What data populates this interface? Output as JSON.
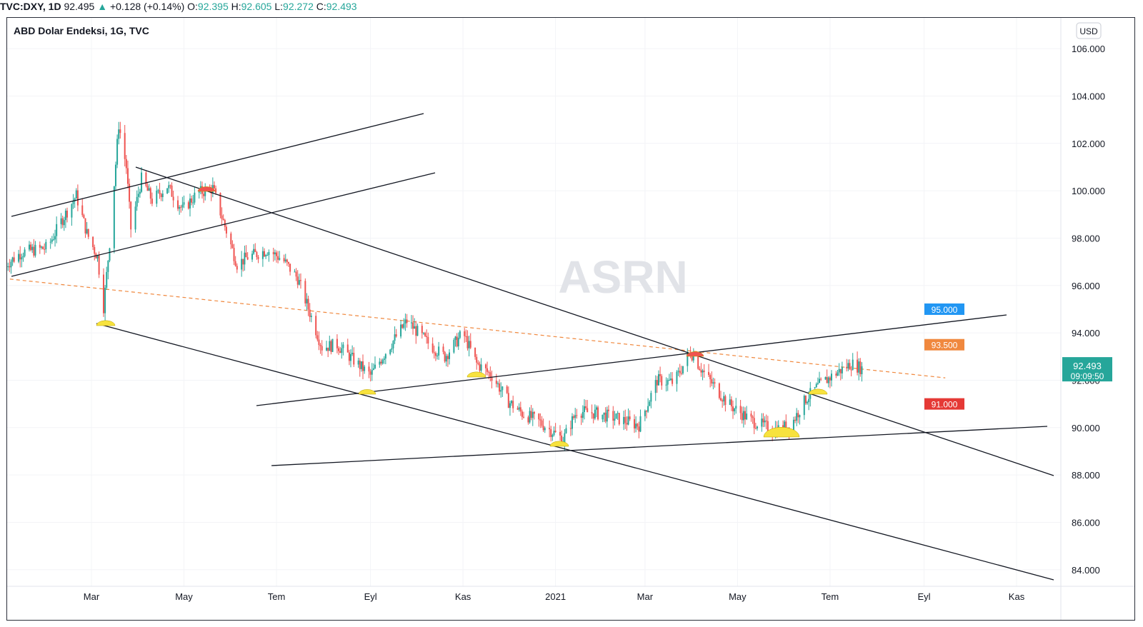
{
  "header": {
    "symbol": "TVC:DXY, 1D",
    "last": "92.495",
    "arrow": "▲",
    "change": "+0.128 (+0.14%)",
    "o_label": "O:",
    "o_value": "92.395",
    "h_label": "H:",
    "h_value": "92.605",
    "l_label": "L:",
    "l_value": "92.272",
    "c_label": "C:",
    "c_value": "92.493"
  },
  "chart_title": "ABD Dolar Endeksi, 1G, TVC",
  "currency_label": "USD",
  "watermark": "ASRN",
  "last_price_tag": {
    "price": "92.493",
    "countdown": "09:09:50",
    "color": "#26a69a"
  },
  "colors": {
    "up": "#26a69a",
    "down": "#ef5350",
    "trendline": "#131722",
    "dashed_line": "#f0883e",
    "marker": "#f7e23e",
    "marker_red": "#ef5350"
  },
  "chart_data": {
    "type": "candlestick",
    "title": "ABD Dolar Endeksi, 1G, TVC",
    "x_range": [
      "2020-01-03",
      "2021-10-29"
    ],
    "ylim": [
      83.3,
      107.3
    ],
    "y_ticks": [
      "106.000",
      "104.000",
      "102.000",
      "100.000",
      "98.000",
      "96.000",
      "94.000",
      "92.000",
      "90.000",
      "88.000",
      "86.000",
      "84.000"
    ],
    "x_ticks": [
      {
        "label": "Mar",
        "date": "2020-03-01"
      },
      {
        "label": "May",
        "date": "2020-05-01"
      },
      {
        "label": "Tem",
        "date": "2020-07-01"
      },
      {
        "label": "Eyl",
        "date": "2020-09-01"
      },
      {
        "label": "Kas",
        "date": "2020-11-01"
      },
      {
        "label": "2021",
        "date": "2021-01-01"
      },
      {
        "label": "Mar",
        "date": "2021-03-01"
      },
      {
        "label": "May",
        "date": "2021-05-01"
      },
      {
        "label": "Tem",
        "date": "2021-07-01"
      },
      {
        "label": "Eyl",
        "date": "2021-09-01"
      },
      {
        "label": "Kas",
        "date": "2021-11-01"
      }
    ],
    "price_path": [
      [
        "2020-01-03",
        96.8
      ],
      [
        "2020-01-15",
        97.4
      ],
      [
        "2020-02-01",
        97.6
      ],
      [
        "2020-02-10",
        98.7
      ],
      [
        "2020-02-20",
        99.8
      ],
      [
        "2020-02-27",
        98.2
      ],
      [
        "2020-03-05",
        97.2
      ],
      [
        "2020-03-09",
        95.1
      ],
      [
        "2020-03-13",
        97.8
      ],
      [
        "2020-03-19",
        102.8
      ],
      [
        "2020-03-24",
        101.0
      ],
      [
        "2020-03-27",
        98.4
      ],
      [
        "2020-04-03",
        100.5
      ],
      [
        "2020-04-10",
        99.6
      ],
      [
        "2020-04-20",
        100.2
      ],
      [
        "2020-04-30",
        99.2
      ],
      [
        "2020-05-10",
        99.9
      ],
      [
        "2020-05-20",
        100.1
      ],
      [
        "2020-05-28",
        98.5
      ],
      [
        "2020-06-05",
        96.9
      ],
      [
        "2020-06-12",
        97.2
      ],
      [
        "2020-06-25",
        97.5
      ],
      [
        "2020-07-05",
        97.1
      ],
      [
        "2020-07-15",
        96.3
      ],
      [
        "2020-07-31",
        93.4
      ],
      [
        "2020-08-10",
        93.5
      ],
      [
        "2020-08-20",
        92.9
      ],
      [
        "2020-09-01",
        92.2
      ],
      [
        "2020-09-10",
        93.1
      ],
      [
        "2020-09-25",
        94.5
      ],
      [
        "2020-10-10",
        93.5
      ],
      [
        "2020-10-20",
        93.0
      ],
      [
        "2020-11-01",
        94.0
      ],
      [
        "2020-11-10",
        92.7
      ],
      [
        "2020-11-20",
        92.2
      ],
      [
        "2020-12-01",
        91.1
      ],
      [
        "2020-12-10",
        90.6
      ],
      [
        "2020-12-20",
        90.3
      ],
      [
        "2021-01-06",
        89.5
      ],
      [
        "2021-01-15",
        90.7
      ],
      [
        "2021-01-28",
        90.6
      ],
      [
        "2021-02-10",
        90.4
      ],
      [
        "2021-02-25",
        90.1
      ],
      [
        "2021-03-09",
        92.0
      ],
      [
        "2021-03-20",
        91.9
      ],
      [
        "2021-03-31",
        93.2
      ],
      [
        "2021-04-10",
        92.2
      ],
      [
        "2021-04-25",
        91.0
      ],
      [
        "2021-05-10",
        90.3
      ],
      [
        "2021-05-25",
        89.9
      ],
      [
        "2021-06-05",
        90.1
      ],
      [
        "2021-06-15",
        91.2
      ],
      [
        "2021-06-24",
        91.8
      ],
      [
        "2021-07-05",
        92.3
      ],
      [
        "2021-07-15",
        92.7
      ],
      [
        "2021-07-22",
        92.5
      ]
    ],
    "horizontal_levels": [
      {
        "value": 95.0,
        "label": "95.000",
        "color": "#2196f3"
      },
      {
        "value": 93.5,
        "label": "93.500",
        "color": "#f0883e"
      },
      {
        "value": 91.0,
        "label": "91.000",
        "color": "#e53935"
      }
    ],
    "last_price": 92.493
  }
}
